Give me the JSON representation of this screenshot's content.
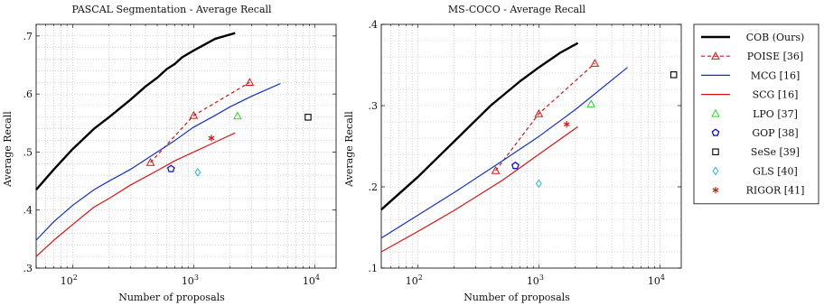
{
  "chart_data": [
    {
      "type": "line",
      "title": "PASCAL Segmentation - Average Recall",
      "xlabel": "Number of proposals",
      "ylabel": "Average Recall",
      "x_scale": "log",
      "xlim": [
        50,
        15000
      ],
      "ylim": [
        0.3,
        0.72
      ],
      "x_ticks": [
        {
          "value": 100,
          "base": "10",
          "exp": "2"
        },
        {
          "value": 1000,
          "base": "10",
          "exp": "3"
        },
        {
          "value": 10000,
          "base": "10",
          "exp": "4"
        }
      ],
      "y_ticks": [
        {
          "value": 0.3,
          "label": ".3"
        },
        {
          "value": 0.4,
          "label": ".4"
        },
        {
          "value": 0.5,
          "label": ".5"
        },
        {
          "value": 0.6,
          "label": ".6"
        },
        {
          "value": 0.7,
          "label": ".7"
        }
      ],
      "grid": true,
      "series": [
        {
          "name": "COB (Ours)",
          "kind": "line",
          "color": "#000000",
          "width": 2.4,
          "dash": "",
          "x": [
            50,
            70,
            100,
            150,
            200,
            300,
            400,
            500,
            600,
            700,
            800,
            1000,
            1200,
            1500,
            2200
          ],
          "y": [
            0.435,
            0.47,
            0.505,
            0.54,
            0.56,
            0.59,
            0.613,
            0.628,
            0.643,
            0.652,
            0.663,
            0.675,
            0.684,
            0.695,
            0.705
          ]
        },
        {
          "name": "POISE [36]",
          "kind": "line-marker",
          "color": "#e01010",
          "width": 1.2,
          "dash": "4 3",
          "marker": "triangle",
          "x": [
            440,
            1000,
            2900
          ],
          "y": [
            0.482,
            0.563,
            0.62
          ]
        },
        {
          "name": "MCG [16]",
          "kind": "line",
          "color": "#1030d0",
          "width": 1.2,
          "dash": "",
          "x": [
            50,
            70,
            100,
            150,
            200,
            300,
            500,
            700,
            1000,
            1500,
            2000,
            3000,
            5200
          ],
          "y": [
            0.348,
            0.38,
            0.408,
            0.435,
            0.45,
            0.47,
            0.5,
            0.52,
            0.543,
            0.563,
            0.578,
            0.596,
            0.618
          ]
        },
        {
          "name": "SCG [16]",
          "kind": "line",
          "color": "#e01010",
          "width": 1.2,
          "dash": "",
          "x": [
            50,
            70,
            100,
            150,
            200,
            300,
            500,
            700,
            1000,
            1500,
            2200
          ],
          "y": [
            0.32,
            0.348,
            0.375,
            0.405,
            0.42,
            0.443,
            0.468,
            0.485,
            0.5,
            0.517,
            0.533
          ]
        },
        {
          "name": "LPO [37]",
          "kind": "marker",
          "color": "#22dd22",
          "marker": "triangle",
          "x": [
            2300
          ],
          "y": [
            0.562
          ]
        },
        {
          "name": "GOP [38]",
          "kind": "marker",
          "color": "#1010c8",
          "marker": "pentagon",
          "x": [
            650
          ],
          "y": [
            0.471
          ]
        },
        {
          "name": "SeSe [39]",
          "kind": "marker",
          "color": "#000000",
          "marker": "square",
          "x": [
            8800
          ],
          "y": [
            0.56
          ]
        },
        {
          "name": "GLS [40]",
          "kind": "marker",
          "color": "#20b8e0",
          "marker": "diamond",
          "x": [
            1080
          ],
          "y": [
            0.465
          ]
        },
        {
          "name": "RIGOR [41]",
          "kind": "marker",
          "color": "#e01010",
          "marker": "star",
          "x": [
            1400
          ],
          "y": [
            0.524
          ]
        }
      ]
    },
    {
      "type": "line",
      "title": "MS-COCO - Average Recall",
      "xlabel": "Number of proposals",
      "ylabel": "Average Recall",
      "x_scale": "log",
      "xlim": [
        50,
        15000
      ],
      "ylim": [
        0.1,
        0.4
      ],
      "x_ticks": [
        {
          "value": 100,
          "base": "10",
          "exp": "2"
        },
        {
          "value": 1000,
          "base": "10",
          "exp": "3"
        },
        {
          "value": 10000,
          "base": "10",
          "exp": "4"
        }
      ],
      "y_ticks": [
        {
          "value": 0.1,
          "label": ".1"
        },
        {
          "value": 0.2,
          "label": ".2"
        },
        {
          "value": 0.3,
          "label": ".3"
        },
        {
          "value": 0.4,
          "label": ".4"
        }
      ],
      "grid": true,
      "series": [
        {
          "name": "COB (Ours)",
          "kind": "line",
          "color": "#000000",
          "width": 2.4,
          "dash": "",
          "x": [
            50,
            100,
            200,
            400,
            700,
            1000,
            1500,
            2100
          ],
          "y": [
            0.172,
            0.212,
            0.256,
            0.3,
            0.33,
            0.347,
            0.365,
            0.377
          ]
        },
        {
          "name": "POISE [36]",
          "kind": "line-marker",
          "color": "#e01010",
          "width": 1.2,
          "dash": "4 3",
          "marker": "triangle",
          "x": [
            440,
            1000,
            2900
          ],
          "y": [
            0.22,
            0.29,
            0.352
          ]
        },
        {
          "name": "MCG [16]",
          "kind": "line",
          "color": "#1030d0",
          "width": 1.2,
          "dash": "",
          "x": [
            50,
            100,
            200,
            500,
            1000,
            2000,
            5400
          ],
          "y": [
            0.137,
            0.165,
            0.193,
            0.232,
            0.262,
            0.295,
            0.347
          ]
        },
        {
          "name": "SCG [16]",
          "kind": "line",
          "color": "#e01010",
          "width": 1.2,
          "dash": "",
          "x": [
            50,
            100,
            200,
            500,
            1000,
            2100
          ],
          "y": [
            0.12,
            0.145,
            0.171,
            0.208,
            0.24,
            0.274
          ]
        },
        {
          "name": "LPO [37]",
          "kind": "marker",
          "color": "#22dd22",
          "marker": "triangle",
          "x": [
            2700
          ],
          "y": [
            0.302
          ]
        },
        {
          "name": "GOP [38]",
          "kind": "marker",
          "color": "#1010c8",
          "marker": "pentagon",
          "x": [
            640
          ],
          "y": [
            0.226
          ]
        },
        {
          "name": "SeSe [39]",
          "kind": "marker",
          "color": "#000000",
          "marker": "square",
          "x": [
            13000
          ],
          "y": [
            0.338
          ]
        },
        {
          "name": "GLS [40]",
          "kind": "marker",
          "color": "#20b8e0",
          "marker": "diamond",
          "x": [
            1000
          ],
          "y": [
            0.204
          ]
        },
        {
          "name": "RIGOR [41]",
          "kind": "marker",
          "color": "#e01010",
          "marker": "star",
          "x": [
            1700
          ],
          "y": [
            0.277
          ]
        }
      ]
    }
  ],
  "legend": {
    "placement": "right",
    "entries": [
      {
        "label": "COB (Ours)",
        "color": "#000000",
        "style": "solid-thick",
        "marker": ""
      },
      {
        "label": "POISE [36]",
        "color": "#e01010",
        "style": "dashed",
        "marker": "triangle"
      },
      {
        "label": "MCG [16]",
        "color": "#1030d0",
        "style": "solid",
        "marker": ""
      },
      {
        "label": "SCG [16]",
        "color": "#e01010",
        "style": "solid",
        "marker": ""
      },
      {
        "label": "LPO [37]",
        "color": "#22dd22",
        "style": "none",
        "marker": "triangle"
      },
      {
        "label": "GOP [38]",
        "color": "#1010c8",
        "style": "none",
        "marker": "pentagon"
      },
      {
        "label": "SeSe [39]",
        "color": "#000000",
        "style": "none",
        "marker": "square"
      },
      {
        "label": "GLS [40]",
        "color": "#20b8e0",
        "style": "none",
        "marker": "diamond"
      },
      {
        "label": "RIGOR [41]",
        "color": "#e01010",
        "style": "none",
        "marker": "star"
      }
    ]
  }
}
